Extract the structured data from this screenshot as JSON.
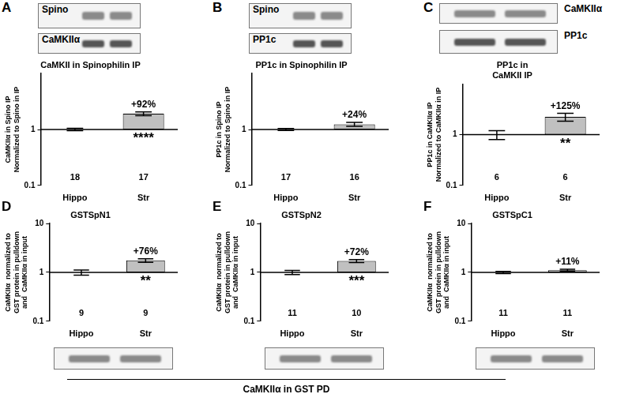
{
  "figure_caption": "CaMKIIα in GST PD",
  "chart_data": [
    {
      "panel": "A",
      "type": "bar",
      "title": [
        "CaMKII in Spinophilin IP"
      ],
      "ylabel": [
        "CaMKIIα in Spino IP",
        "Normalized to Spino in IP"
      ],
      "blots": [
        "Spino",
        "CaMKIIα"
      ],
      "categories": [
        "Hippo",
        "Str"
      ],
      "values": [
        1,
        1.92
      ],
      "errors": [
        0.05,
        0.15
      ],
      "n": [
        18,
        17
      ],
      "base": 1,
      "annotations": {
        "above": "+92%",
        "below": "****"
      },
      "color": "#c0c0c0",
      "log": "y",
      "ylim": [
        0.1,
        10
      ],
      "yticks": [
        0.1,
        1
      ],
      "grid": false
    },
    {
      "panel": "B",
      "type": "bar",
      "title": [
        "PP1c in Spinophilin IP"
      ],
      "ylabel": [
        "PP1c in Spino IP",
        "Normalized to Spino in IP"
      ],
      "blots": [
        "Spino",
        "PP1c"
      ],
      "categories": [
        "Hippo",
        "Str"
      ],
      "values": [
        1,
        1.24
      ],
      "errors": [
        0.04,
        0.1
      ],
      "n": [
        17,
        16
      ],
      "base": 1,
      "annotations": {
        "above": "+24%"
      },
      "color": "#c0c0c0",
      "log": "y",
      "ylim": [
        0.1,
        10
      ],
      "yticks": [
        0.1,
        1
      ],
      "grid": false
    },
    {
      "panel": "C",
      "type": "bar",
      "title": [
        "PP1c in",
        "CaMKII IP"
      ],
      "ylabel": [
        "PP1c in CaMKIIα IP",
        "Normalized to CaMKIIα in IP"
      ],
      "blots": [
        "CaMKIIα",
        "PP1c"
      ],
      "categories": [
        "Hippo",
        "Str"
      ],
      "values": [
        1,
        2.25
      ],
      "errors": [
        0.2,
        0.4
      ],
      "n": [
        6,
        6
      ],
      "base": 1,
      "annotations": {
        "above": "+125%",
        "below": "**"
      },
      "color": "#c0c0c0",
      "log": "y",
      "ylim": [
        0.1,
        10
      ],
      "yticks": [
        0.1,
        1
      ],
      "grid": false
    },
    {
      "panel": "D",
      "type": "bar",
      "title": [
        "GSTSpN1"
      ],
      "ylabel": [
        "CaMKIIα  normalized to",
        "GST protein in pulldown",
        "and  CaMKIIα in input"
      ],
      "categories": [
        "Hippo",
        "Str"
      ],
      "values": [
        1,
        1.76
      ],
      "errors": [
        0.12,
        0.15
      ],
      "n": [
        9,
        9
      ],
      "base": 1,
      "annotations": {
        "above": "+76%",
        "below": "**"
      },
      "color": "#c0c0c0",
      "log": "y",
      "ylim": [
        0.1,
        10
      ],
      "yticks": [
        0.1,
        1,
        10
      ],
      "grid": false
    },
    {
      "panel": "E",
      "type": "bar",
      "title": [
        "GSTSpN2"
      ],
      "ylabel": [
        "CaMKIIα  normalized to",
        "GST protein in pulldown",
        "and  CaMKIIα in input"
      ],
      "categories": [
        "Hippo",
        "Str"
      ],
      "values": [
        1,
        1.72
      ],
      "errors": [
        0.1,
        0.12
      ],
      "n": [
        11,
        10
      ],
      "base": 1,
      "annotations": {
        "above": "+72%",
        "below": "***"
      },
      "color": "#c0c0c0",
      "log": "y",
      "ylim": [
        0.1,
        10
      ],
      "yticks": [
        0.1,
        1,
        10
      ],
      "grid": false
    },
    {
      "panel": "F",
      "type": "bar",
      "title": [
        "GSTSpC1"
      ],
      "ylabel": [
        "CaMKIIα  normalized to",
        "GST protein in pulldown",
        "and  CaMKIIα in input"
      ],
      "categories": [
        "Hippo",
        "Str"
      ],
      "values": [
        1,
        1.11
      ],
      "errors": [
        0.05,
        0.05
      ],
      "n": [
        11,
        11
      ],
      "base": 1,
      "annotations": {
        "above": "+11%"
      },
      "color": "#c0c0c0",
      "log": "y",
      "ylim": [
        0.1,
        10
      ],
      "yticks": [
        0.1,
        1,
        10
      ],
      "grid": false
    }
  ]
}
